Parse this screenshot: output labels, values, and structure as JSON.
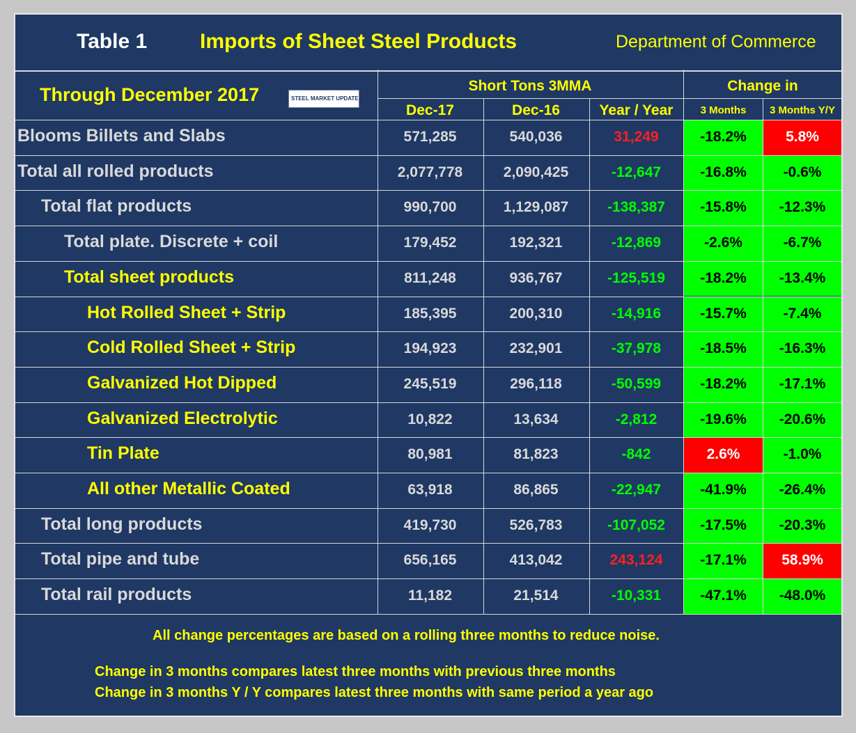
{
  "header": {
    "table_label": "Table 1",
    "title": "Imports of Sheet Steel Products",
    "source": "Department of Commerce"
  },
  "subheader": {
    "through": "Through December 2017",
    "logo_text": "STEEL MARKET UPDATE"
  },
  "columns": {
    "group_tons": "Short Tons 3MMA",
    "group_change": "Change in",
    "dec17": "Dec-17",
    "dec16": "Dec-16",
    "yoy": "Year / Year",
    "m3": "3 Months",
    "m3yy": "3 Months Y/Y"
  },
  "colors": {
    "background": "#1f3864",
    "yellow": "#ffff00",
    "label_gray": "#d9d9d9",
    "green_text": "#00ff00",
    "red_text": "#ff2020",
    "green_fill": "#00ff00",
    "red_fill": "#ff0000"
  },
  "rows": [
    {
      "label": "Blooms Billets and Slabs",
      "dec17": "571,285",
      "dec16": "540,036",
      "yoy": "31,249",
      "m3": "-18.2%",
      "m3yy": "5.8%"
    },
    {
      "label": "Total all rolled products",
      "dec17": "2,077,778",
      "dec16": "2,090,425",
      "yoy": "-12,647",
      "m3": "-16.8%",
      "m3yy": "-0.6%"
    },
    {
      "label": "Total flat products",
      "dec17": "990,700",
      "dec16": "1,129,087",
      "yoy": "-138,387",
      "m3": "-15.8%",
      "m3yy": "-12.3%"
    },
    {
      "label": "Total plate. Discrete + coil",
      "dec17": "179,452",
      "dec16": "192,321",
      "yoy": "-12,869",
      "m3": "-2.6%",
      "m3yy": "-6.7%"
    },
    {
      "label": "Total sheet products",
      "dec17": "811,248",
      "dec16": "936,767",
      "yoy": "-125,519",
      "m3": "-18.2%",
      "m3yy": "-13.4%"
    },
    {
      "label": "Hot Rolled Sheet + Strip",
      "dec17": "185,395",
      "dec16": "200,310",
      "yoy": "-14,916",
      "m3": "-15.7%",
      "m3yy": "-7.4%"
    },
    {
      "label": "Cold Rolled Sheet + Strip",
      "dec17": "194,923",
      "dec16": "232,901",
      "yoy": "-37,978",
      "m3": "-18.5%",
      "m3yy": "-16.3%"
    },
    {
      "label": "Galvanized Hot Dipped",
      "dec17": "245,519",
      "dec16": "296,118",
      "yoy": "-50,599",
      "m3": "-18.2%",
      "m3yy": "-17.1%"
    },
    {
      "label": "Galvanized Electrolytic",
      "dec17": "10,822",
      "dec16": "13,634",
      "yoy": "-2,812",
      "m3": "-19.6%",
      "m3yy": "-20.6%"
    },
    {
      "label": "Tin Plate",
      "dec17": "80,981",
      "dec16": "81,823",
      "yoy": "-842",
      "m3": "2.6%",
      "m3yy": "-1.0%"
    },
    {
      "label": "All other Metallic Coated",
      "dec17": "63,918",
      "dec16": "86,865",
      "yoy": "-22,947",
      "m3": "-41.9%",
      "m3yy": "-26.4%"
    },
    {
      "label": "Total long products",
      "dec17": "419,730",
      "dec16": "526,783",
      "yoy": "-107,052",
      "m3": "-17.5%",
      "m3yy": "-20.3%"
    },
    {
      "label": "Total pipe and tube",
      "dec17": "656,165",
      "dec16": "413,042",
      "yoy": "243,124",
      "m3": "-17.1%",
      "m3yy": "58.9%"
    },
    {
      "label": "Total rail products",
      "dec17": "11,182",
      "dec16": "21,514",
      "yoy": "-10,331",
      "m3": "-47.1%",
      "m3yy": "-48.0%"
    }
  ],
  "footer": {
    "note1": "All change percentages are based on a rolling three months to reduce noise.",
    "note2": "Change in 3 months compares latest three months with previous three months",
    "note3": "Change in 3 months  Y / Y compares latest three months with same period a year ago"
  }
}
